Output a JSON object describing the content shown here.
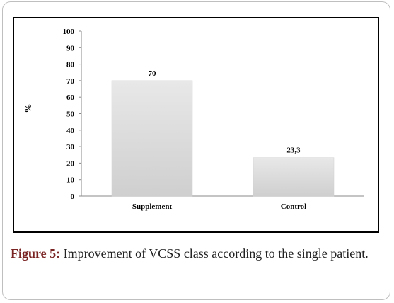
{
  "chart_data": {
    "type": "bar",
    "categories": [
      "Supplement",
      "Control"
    ],
    "values": [
      70,
      23.3
    ],
    "data_labels": [
      "70",
      "23,3"
    ],
    "ylabel": "%",
    "xlabel": "",
    "ylim": [
      0,
      100
    ],
    "yticks": [
      "0",
      "10",
      "20",
      "30",
      "40",
      "50",
      "60",
      "70",
      "80",
      "90",
      "100"
    ],
    "grid": false,
    "legend": false,
    "bar_colors": [
      "#d9d9d9",
      "#e6e6e6"
    ]
  },
  "caption": {
    "label": "Figure 5:",
    "text": "Improvement of VCSS class according to the single patient."
  }
}
